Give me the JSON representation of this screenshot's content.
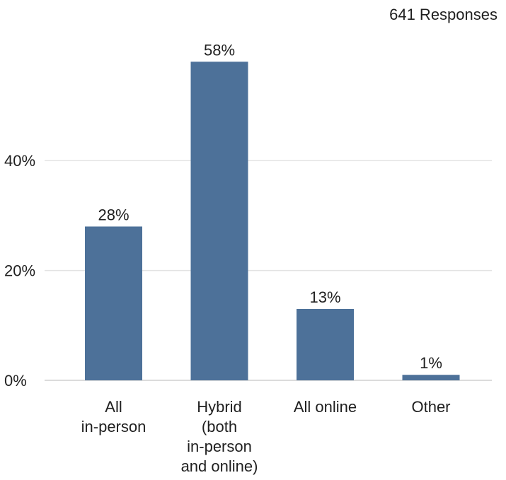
{
  "chart_data": {
    "type": "bar",
    "subtitle": "641 Responses",
    "categories": [
      [
        "All",
        "in-person"
      ],
      [
        "Hybrid",
        "(both",
        "in-person",
        "and online)"
      ],
      [
        "All online"
      ],
      [
        "Other"
      ]
    ],
    "values": [
      28,
      58,
      13,
      1
    ],
    "data_labels": [
      "28%",
      "58%",
      "13%",
      "1%"
    ],
    "yticks": [
      {
        "value": 0,
        "label": "0%"
      },
      {
        "value": 20,
        "label": "20%"
      },
      {
        "value": 40,
        "label": "40%"
      }
    ],
    "ylim": [
      0,
      60
    ],
    "grid": true,
    "colors": {
      "bar": "#4d7199"
    }
  }
}
